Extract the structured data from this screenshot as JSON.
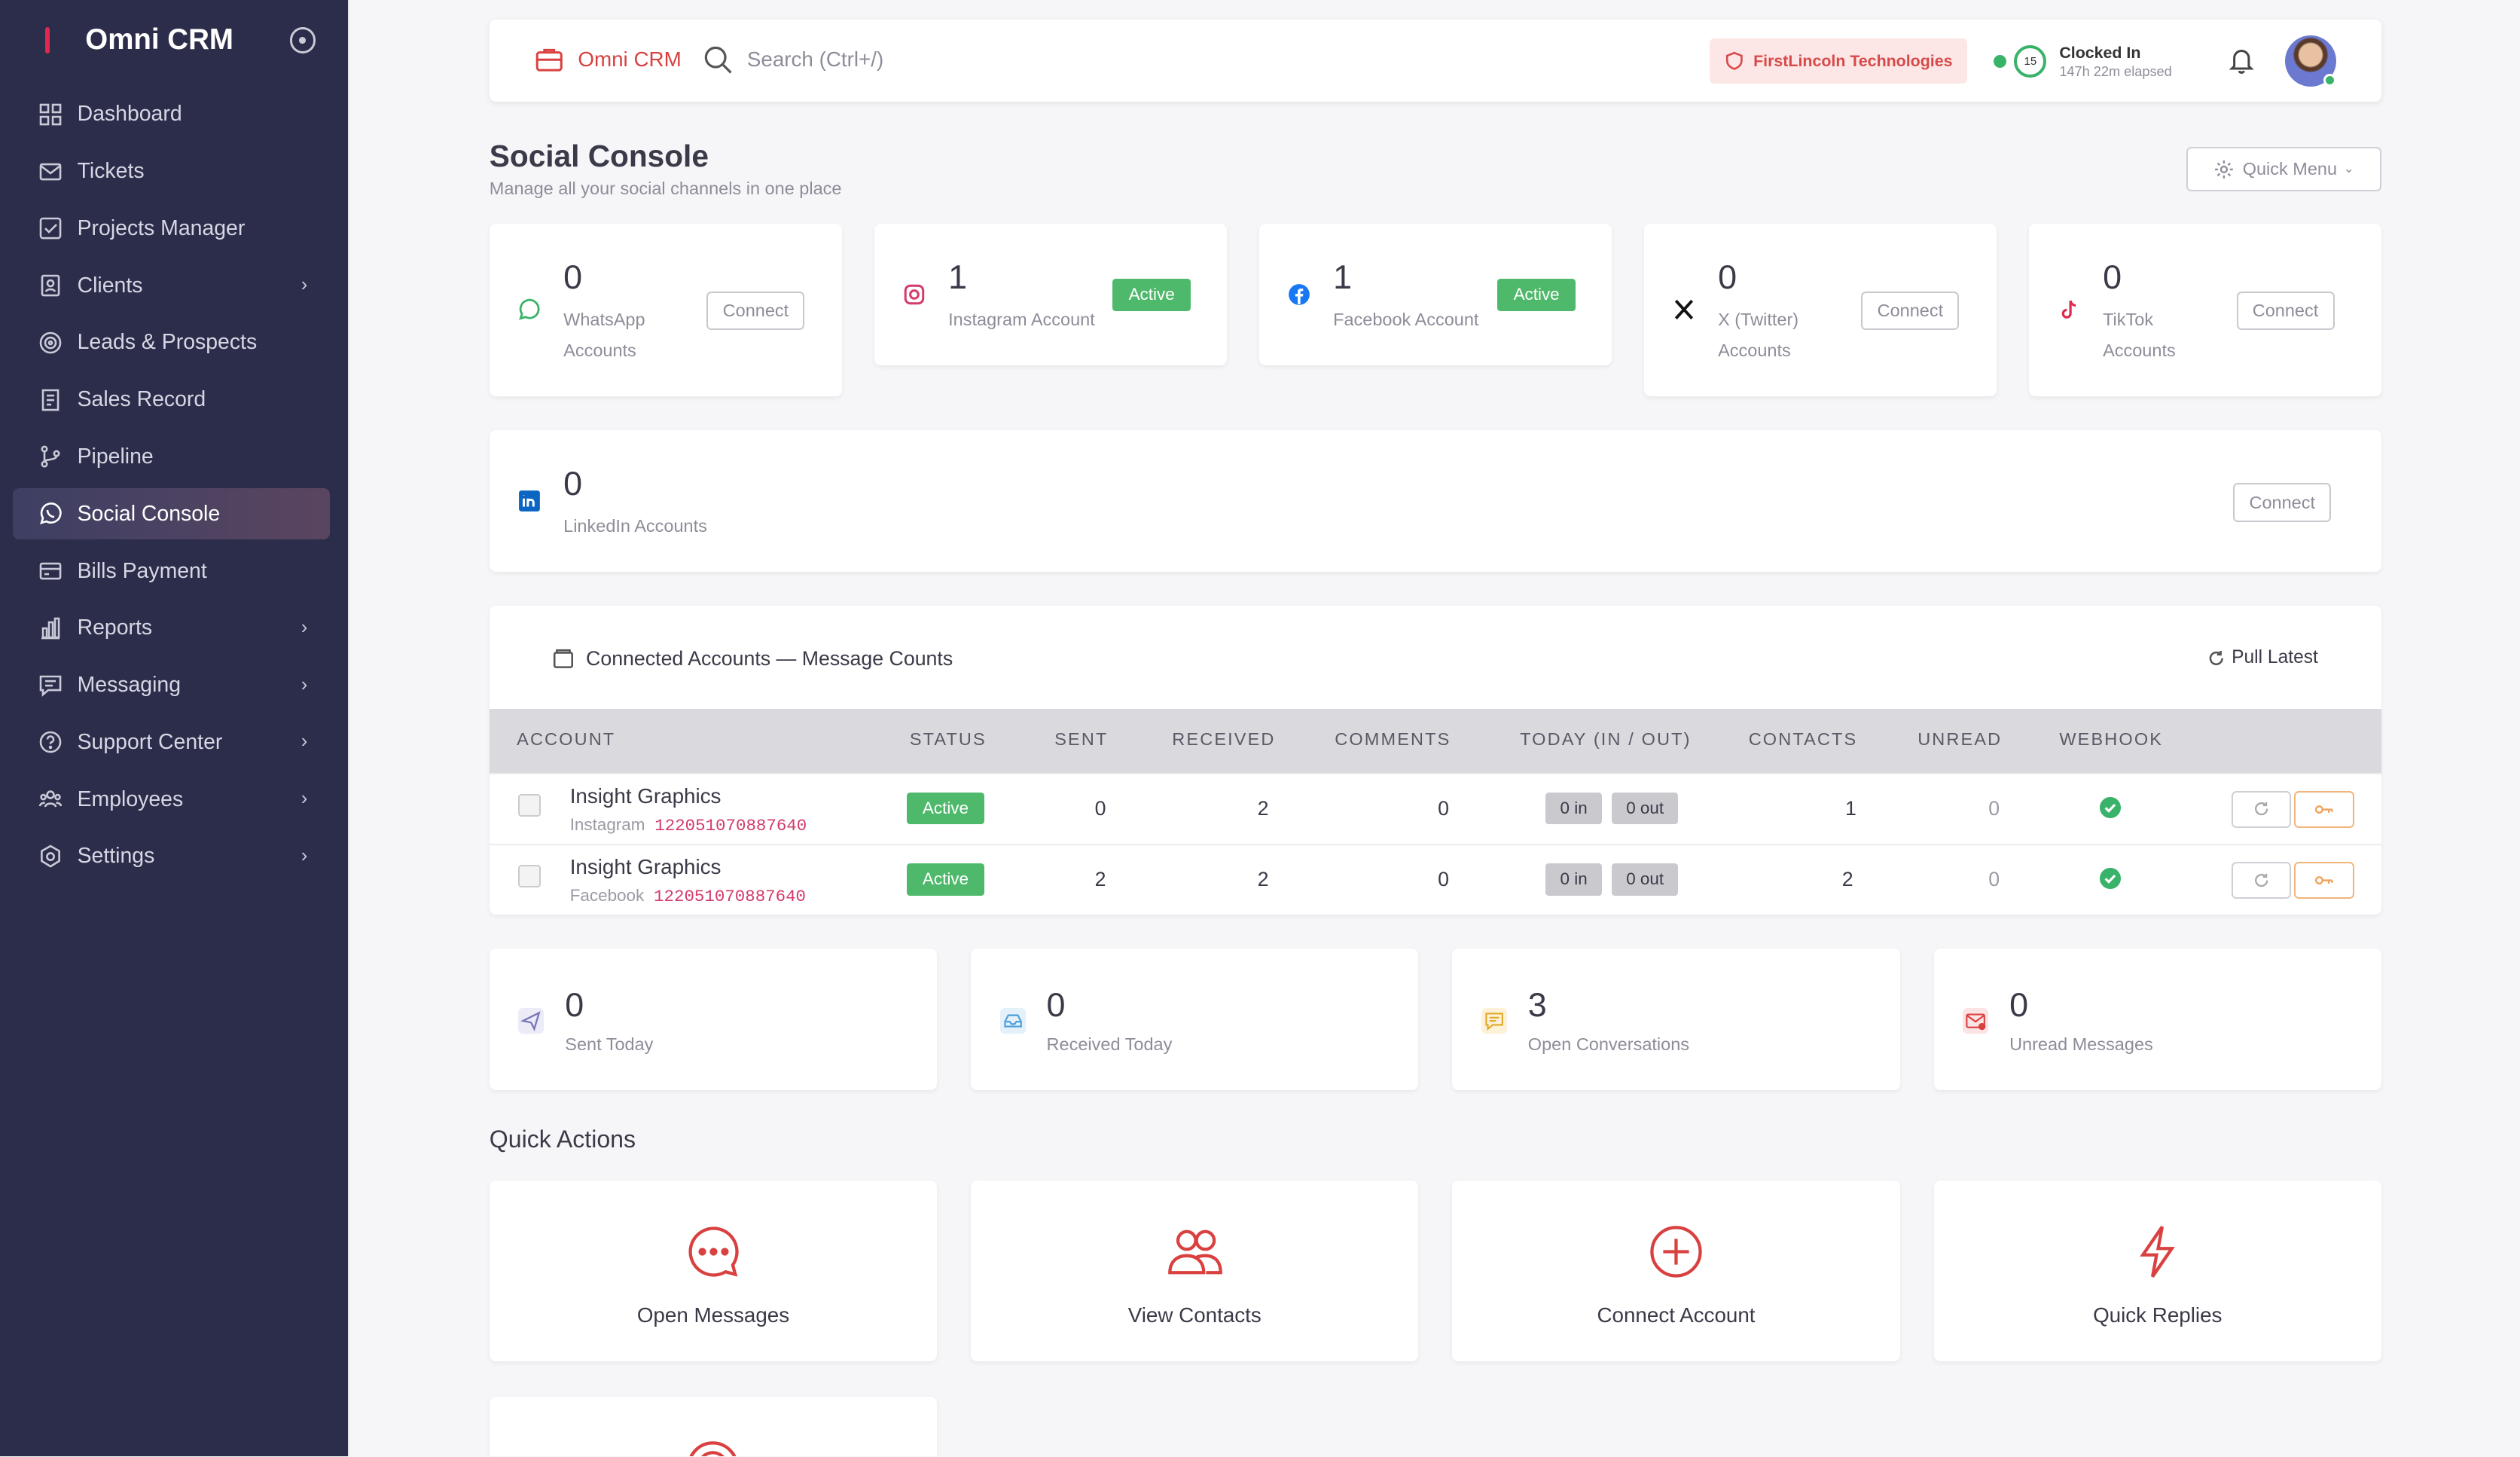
{
  "sidebar": {
    "brand": "Omni CRM",
    "items": [
      {
        "label": "Dashboard"
      },
      {
        "label": "Tickets"
      },
      {
        "label": "Projects Manager"
      },
      {
        "label": "Clients"
      },
      {
        "label": "Leads & Prospects"
      },
      {
        "label": "Sales Record"
      },
      {
        "label": "Pipeline"
      },
      {
        "label": "Social Console"
      },
      {
        "label": "Bills Payment"
      },
      {
        "label": "Reports"
      },
      {
        "label": "Messaging"
      },
      {
        "label": "Support Center"
      },
      {
        "label": "Employees"
      },
      {
        "label": "Settings"
      }
    ]
  },
  "topbar": {
    "brand": "Omni CRM",
    "search_placeholder": "Search (Ctrl+/)",
    "org": "FirstLincoln Technologies",
    "clock_count": "15",
    "clock_title": "Clocked In",
    "clock_sub": "147h 22m elapsed"
  },
  "page": {
    "title": "Social Console",
    "subtitle": "Manage all your social channels in one place",
    "quick_menu": "Quick Menu"
  },
  "accounts": [
    {
      "count": "0",
      "label1": "WhatsApp",
      "label2": "Accounts",
      "action": "Connect"
    },
    {
      "count": "1",
      "label1": "Instagram Account",
      "label2": "",
      "action": "Active"
    },
    {
      "count": "1",
      "label1": "Facebook Account",
      "label2": "",
      "action": "Active"
    },
    {
      "count": "0",
      "label1": "X (Twitter)",
      "label2": "Accounts",
      "action": "Connect"
    },
    {
      "count": "0",
      "label1": "TikTok",
      "label2": "Accounts",
      "action": "Connect"
    },
    {
      "count": "0",
      "label1": "LinkedIn Accounts",
      "label2": "",
      "action": "Connect"
    }
  ],
  "connected": {
    "title": "Connected Accounts — Message Counts",
    "pull": "Pull Latest",
    "headers": [
      "ACCOUNT",
      "STATUS",
      "SENT",
      "RECEIVED",
      "COMMENTS",
      "TODAY (IN / OUT)",
      "CONTACTS",
      "UNREAD",
      "WEBHOOK"
    ],
    "rows": [
      {
        "name": "Insight Graphics",
        "platform": "Instagram",
        "id": "122051070887640",
        "status": "Active",
        "sent": "0",
        "received": "2",
        "comments": "0",
        "today_in": "0 in",
        "today_out": "0 out",
        "contacts": "1",
        "unread": "0"
      },
      {
        "name": "Insight Graphics",
        "platform": "Facebook",
        "id": "122051070887640",
        "status": "Active",
        "sent": "2",
        "received": "2",
        "comments": "0",
        "today_in": "0 in",
        "today_out": "0 out",
        "contacts": "2",
        "unread": "0"
      }
    ]
  },
  "stats": [
    {
      "value": "0",
      "label": "Sent Today"
    },
    {
      "value": "0",
      "label": "Received Today"
    },
    {
      "value": "3",
      "label": "Open Conversations"
    },
    {
      "value": "0",
      "label": "Unread Messages"
    }
  ],
  "quick_actions": {
    "title": "Quick Actions",
    "items": [
      {
        "label": "Open Messages"
      },
      {
        "label": "View Contacts"
      },
      {
        "label": "Connect Account"
      },
      {
        "label": "Quick Replies"
      }
    ]
  },
  "colors": {
    "accent": "#d94141",
    "sidebar": "#2b2d4a",
    "success": "#4fb96b"
  }
}
